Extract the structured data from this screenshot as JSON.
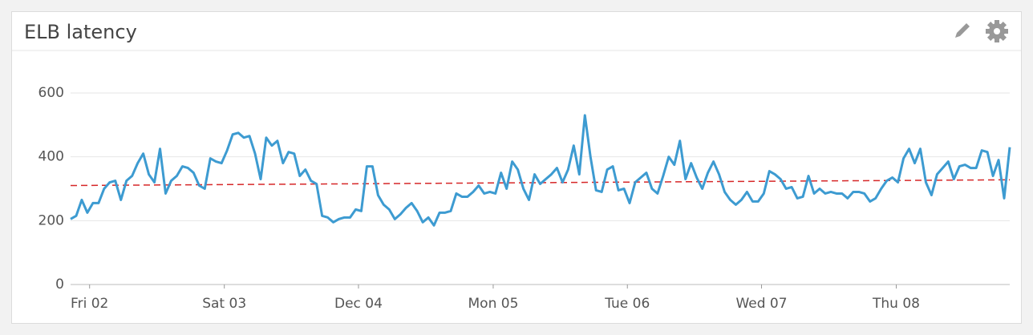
{
  "chart_data": {
    "type": "line",
    "title": "ELB latency",
    "values": [
      205,
      215,
      265,
      225,
      255,
      255,
      300,
      320,
      325,
      265,
      325,
      340,
      380,
      410,
      345,
      320,
      425,
      285,
      325,
      340,
      370,
      365,
      350,
      310,
      300,
      395,
      385,
      380,
      420,
      470,
      475,
      460,
      465,
      410,
      330,
      460,
      435,
      450,
      380,
      415,
      410,
      340,
      360,
      325,
      315,
      215,
      210,
      195,
      205,
      210,
      210,
      235,
      230,
      370,
      370,
      280,
      250,
      235,
      205,
      220,
      240,
      255,
      230,
      195,
      210,
      185,
      225,
      225,
      230,
      285,
      275,
      275,
      290,
      310,
      285,
      290,
      285,
      350,
      300,
      385,
      360,
      300,
      265,
      345,
      315,
      330,
      345,
      365,
      320,
      360,
      435,
      345,
      530,
      400,
      295,
      290,
      360,
      370,
      295,
      300,
      255,
      320,
      335,
      350,
      300,
      285,
      340,
      400,
      375,
      450,
      330,
      380,
      335,
      300,
      350,
      385,
      345,
      290,
      265,
      250,
      265,
      290,
      260,
      260,
      285,
      355,
      345,
      330,
      300,
      305,
      270,
      275,
      340,
      285,
      300,
      285,
      290,
      285,
      285,
      270,
      290,
      290,
      285,
      260,
      270,
      300,
      325,
      335,
      320,
      395,
      425,
      380,
      425,
      320,
      280,
      345,
      365,
      385,
      330,
      370,
      375,
      365,
      365,
      420,
      415,
      340,
      390,
      270,
      430
    ],
    "color": "#3d9bd1",
    "trend_line": {
      "start": 310,
      "end": 328,
      "color": "#d62728"
    },
    "xlim": [
      0,
      168
    ],
    "xticks": [
      {
        "value": 3.4,
        "label": "Fri 02"
      },
      {
        "value": 27.5,
        "label": "Sat 03"
      },
      {
        "value": 51.5,
        "label": "Dec 04"
      },
      {
        "value": 75.6,
        "label": "Mon 05"
      },
      {
        "value": 99.6,
        "label": "Tue 06"
      },
      {
        "value": 123.6,
        "label": "Wed 07"
      },
      {
        "value": 147.7,
        "label": "Thu 08"
      }
    ],
    "ylim": [
      0,
      700
    ],
    "yticks": [
      0,
      200,
      400,
      600
    ],
    "grid": true
  }
}
